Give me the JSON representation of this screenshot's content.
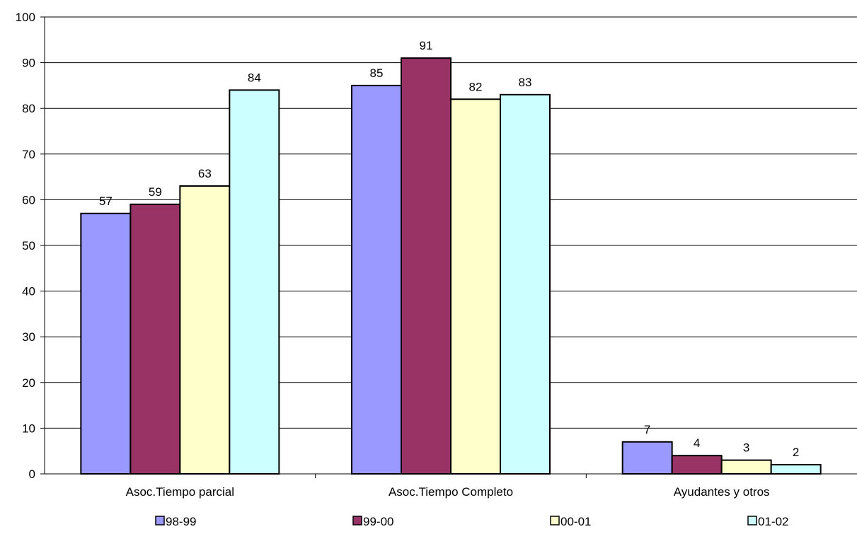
{
  "chart_data": {
    "type": "bar",
    "title": "",
    "xlabel": "",
    "ylabel": "",
    "ylim": [
      0,
      100
    ],
    "ytick_step": 10,
    "grid": true,
    "legend_position": "bottom",
    "categories": [
      "Asoc.Tiempo parcial",
      "Asoc.Tiempo Completo",
      "Ayudantes y otros"
    ],
    "series": [
      {
        "name": "98-99",
        "color": "#9999ff",
        "values": [
          57,
          85,
          7
        ]
      },
      {
        "name": "99-00",
        "color": "#993366",
        "values": [
          59,
          91,
          4
        ]
      },
      {
        "name": "00-01",
        "color": "#ffffcc",
        "values": [
          63,
          82,
          3
        ]
      },
      {
        "name": "01-02",
        "color": "#ccffff",
        "values": [
          84,
          83,
          2
        ]
      }
    ]
  }
}
